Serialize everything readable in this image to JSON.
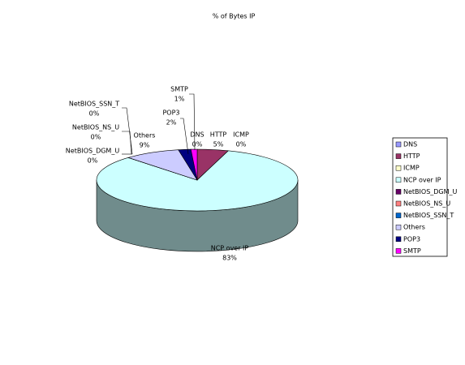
{
  "chart_data": {
    "type": "pie3d",
    "title": "% of Bytes IP",
    "categories": [
      "DNS",
      "HTTP",
      "ICMP",
      "NCP over IP",
      "NetBIOS_DGM_U",
      "NetBIOS_NS_U",
      "NetBIOS_SSN_T",
      "Others",
      "POP3",
      "SMTP"
    ],
    "values": [
      0,
      5,
      0,
      83,
      0,
      0,
      0,
      9,
      2,
      1
    ],
    "value_labels": [
      "0%",
      "5%",
      "0%",
      "83%",
      "0%",
      "0%",
      "0%",
      "9%",
      "2%",
      "1%"
    ],
    "colors": [
      "#9999ff",
      "#993366",
      "#ffffcc",
      "#ccffff",
      "#660066",
      "#ff8080",
      "#0066cc",
      "#ccccff",
      "#000080",
      "#ff00ff"
    ],
    "legend": "right"
  }
}
